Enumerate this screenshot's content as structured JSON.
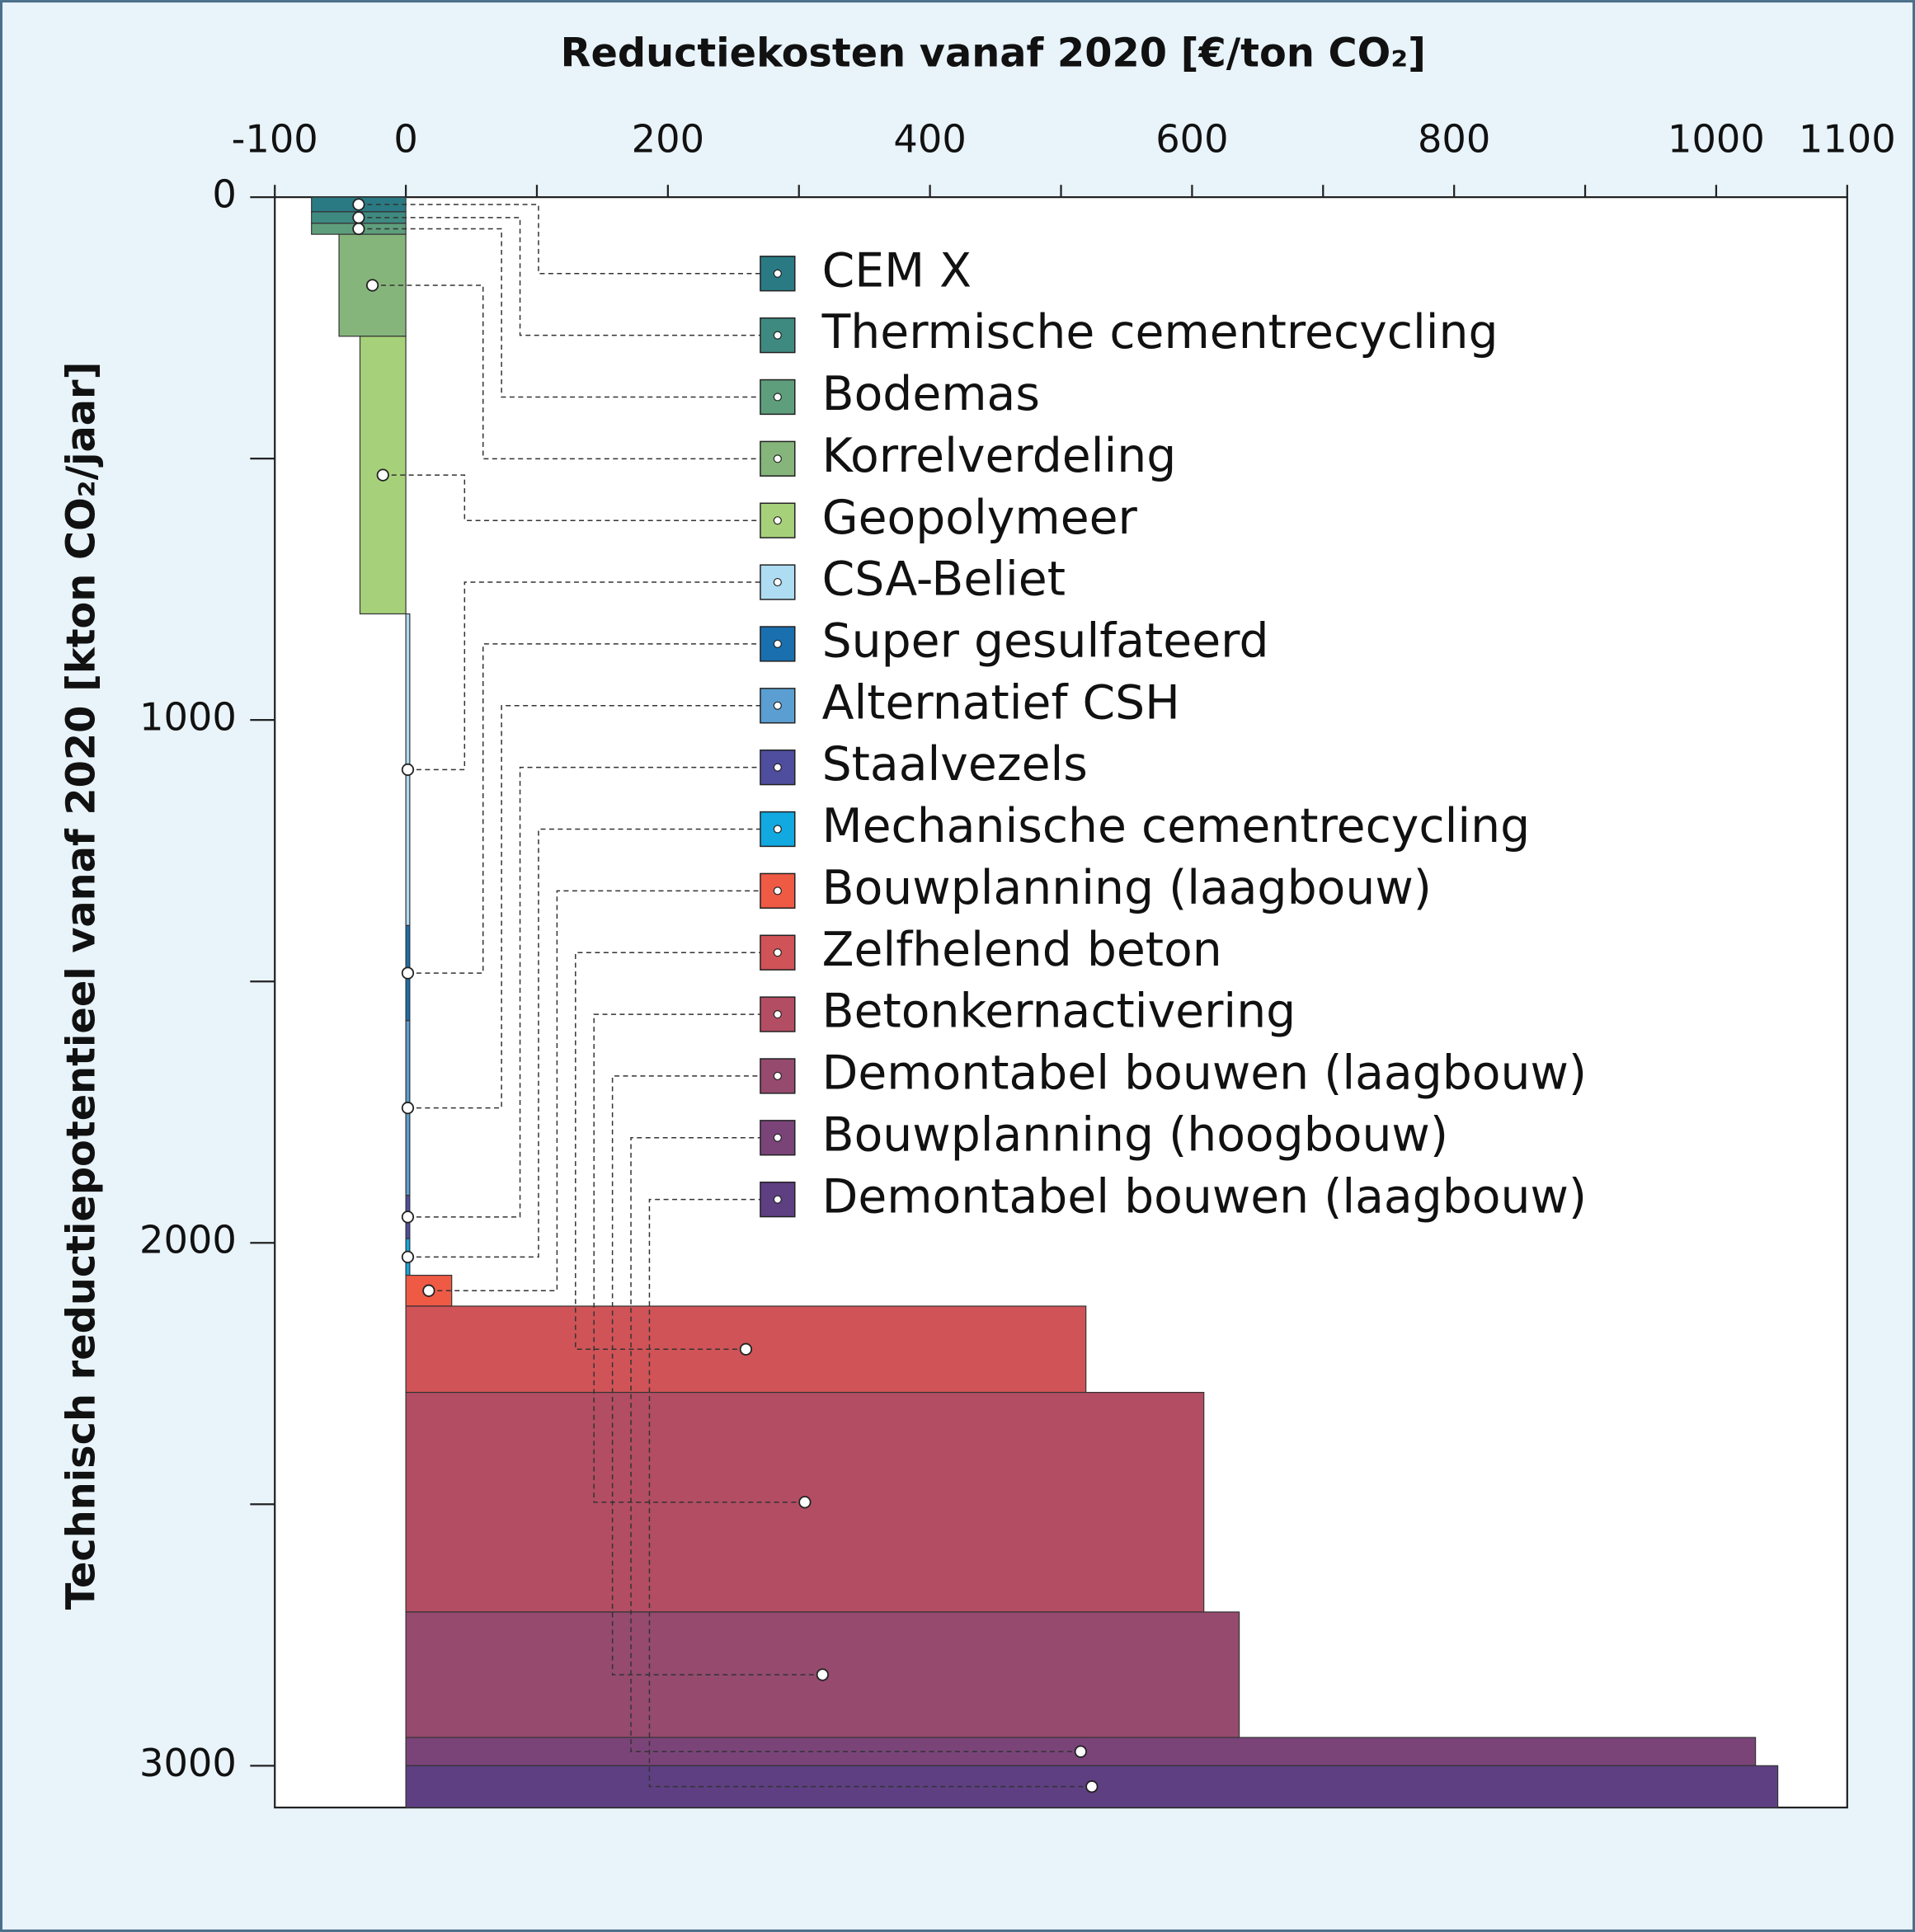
{
  "chart_data": {
    "type": "macc",
    "title": "Reductiekosten vanaf 2020 [€/ton CO₂]",
    "y_label": "Technisch reductiepotentieel vanaf 2020 [kton CO₂/jaar]",
    "categories": [
      "CEM X",
      "Thermische cementrecycling",
      "Bodemas",
      "Korrelverdeling",
      "Geopolymeer",
      "CSA-Beliet",
      "Super gesulfateerd",
      "Alternatief CSH",
      "Staalvezels",
      "Mechanische cementrecycling",
      "Bouwplanning (laagbouw)",
      "Zelfhelend beton",
      "Betonkernactivering",
      "Demontabel bouwen (laagbouw)",
      "Bouwplanning (hoogbouw)",
      "Demontabel bouwen (laagbouw)"
    ],
    "values": [
      -72,
      -72,
      -72,
      -51,
      -35,
      3,
      3,
      3,
      3,
      3,
      35,
      519,
      609,
      636,
      1030,
      1047
    ],
    "widths": [
      28,
      22,
      21,
      195,
      531,
      596,
      182,
      334,
      83,
      70,
      59,
      165,
      420,
      240,
      54,
      80
    ],
    "colors": [
      "#2a7a84",
      "#3f8a80",
      "#5e9e7c",
      "#86b57c",
      "#a6d17a",
      "#aedcf2",
      "#1a6fae",
      "#5b9fd2",
      "#4f4d9e",
      "#12a8e0",
      "#ef5a45",
      "#d05357",
      "#b34d63",
      "#954a6e",
      "#7a4479",
      "#5e3f82"
    ],
    "xlim": [
      -100,
      1100
    ],
    "xticks": [
      -100,
      0,
      200,
      400,
      600,
      800,
      1000,
      1100
    ],
    "xminor": [
      100,
      300,
      500,
      700,
      900
    ],
    "ylim": [
      0,
      3080
    ],
    "yticks": [
      0,
      1000,
      2000,
      3000
    ],
    "yminor": [
      500,
      1500,
      2500
    ]
  }
}
